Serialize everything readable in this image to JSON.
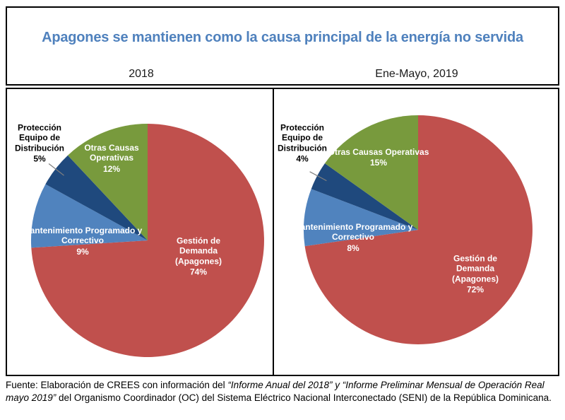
{
  "header": {
    "title": "Apagones se mantienen como la causa principal de la energía no servida",
    "left_period": "2018",
    "right_period": "Ene-Mayo, 2019"
  },
  "chart_data": [
    {
      "type": "pie",
      "title": "2018",
      "labels": [
        "Gestión de Demanda (Apagones)",
        "Mantenimiento Programado y Correctivo",
        "Protección Equipo de Distribución",
        "Otras Causas Operativas"
      ],
      "values": [
        74,
        9,
        5,
        12
      ],
      "value_labels": [
        "74%",
        "9%",
        "5%",
        "12%"
      ],
      "colors": [
        "#C0504D",
        "#5083BE",
        "#1F497D",
        "#789A3D"
      ],
      "start_angle_deg": 0,
      "direction": "clockwise",
      "callout_index": 2,
      "legend_position": "none",
      "label_style": "inside-white-bold-except-callout"
    },
    {
      "type": "pie",
      "title": "Ene-Mayo, 2019",
      "labels": [
        "Gestión de Demanda (Apagones)",
        "Mantenimiento Programado y Correctivo",
        "Protección Equipo de Distribución",
        "Otras Causas Operativas"
      ],
      "values": [
        72,
        8,
        4,
        15
      ],
      "value_labels": [
        "72%",
        "8%",
        "4%",
        "15%"
      ],
      "colors": [
        "#C0504D",
        "#5083BE",
        "#1F497D",
        "#789A3D"
      ],
      "start_angle_deg": 0,
      "direction": "clockwise",
      "callout_index": 2,
      "legend_position": "none",
      "label_style": "inside-white-bold-except-callout"
    }
  ],
  "footer": {
    "source_prefix": "Fuente: Elaboración de CREES con información del ",
    "source_italic": "“Informe Anual del 2018” y “Informe Preliminar Mensual de Operación Real mayo 2019”",
    "source_suffix": " del Organismo Coordinador (OC) del Sistema Eléctrico Nacional Interconectado (SENI) de la República Dominicana."
  },
  "colors": {
    "title_text": "#4F81BD",
    "apagones_red": "#C0504D",
    "mantenimiento_light_blue": "#5083BE",
    "proteccion_dark_blue": "#1F497D",
    "otras_causas_green": "#789A3D",
    "inside_label_text": "#FFFFFF",
    "callout_label_text": "#000000",
    "box_border": "#000000",
    "leader_line": "#7F7F7F"
  }
}
